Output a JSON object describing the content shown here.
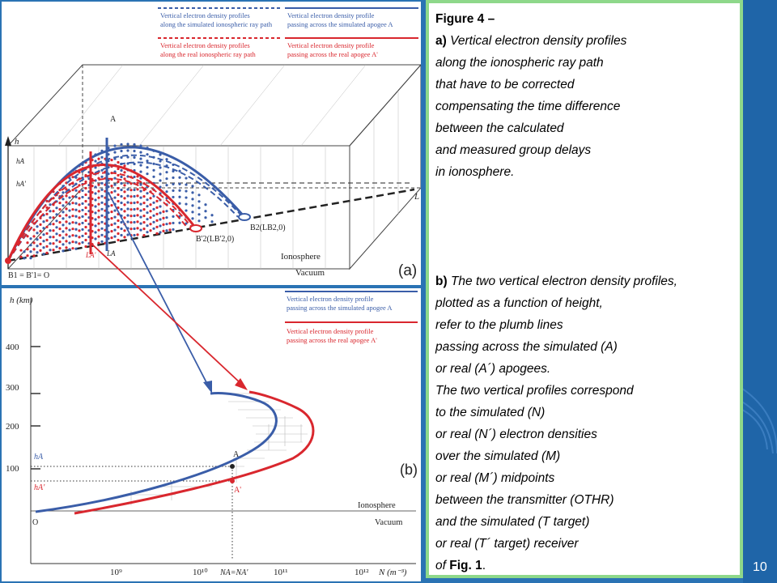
{
  "panel_a": {
    "legend": {
      "blue_dotted_l1": "Vertical electron density profiles",
      "blue_dotted_l2": "along the simulated ionospheric ray path",
      "blue_solid_l1": "Vertical electron density profile",
      "blue_solid_l2": "passing across the simulated apogee A",
      "red_dotted_l1": "Vertical electron density profiles",
      "red_dotted_l2": "along the real ionospheric ray path",
      "red_solid_l1": "Vertical electron density profile",
      "red_solid_l2": "passing across the real apogee A'"
    },
    "labels": {
      "h": "h",
      "hA": "hA",
      "hAp": "hA'",
      "A": "A",
      "L": "L",
      "LA": "LA",
      "LAp": "LA'",
      "B2": "B2(LB2,0)",
      "B2p": "B'2(LB'2,0)",
      "origin": "B1 = B'1= O",
      "ionosphere": "Ionosphere",
      "vacuum": "Vacuum",
      "tag": "(a)"
    }
  },
  "panel_b": {
    "legend": {
      "blue_l1": "Vertical electron density profile",
      "blue_l2": "passing across the simulated apogee A",
      "red_l1": "Vertical electron density profile",
      "red_l2": "passing across the real apogee A'"
    },
    "axis": {
      "y_title": "h (km)",
      "y_ticks": [
        "400",
        "300",
        "200",
        "100"
      ],
      "x_title": "N (m⁻³)",
      "x_ticks": [
        "10⁹",
        "10¹⁰",
        "10¹¹",
        "10¹²"
      ],
      "x_eq": "NA=NA'"
    },
    "labels": {
      "hA": "hA",
      "hAp": "hA'",
      "A": "A",
      "Ap": "A'",
      "O": "O",
      "ionosphere": "Ionosphere",
      "vacuum": "Vacuum",
      "tag": "(b)"
    }
  },
  "caption": {
    "title": "Figure 4 –",
    "a_prefix": "a)",
    "a_line1": "Vertical electron density profiles",
    "a_lines": [
      "along the ionospheric ray path",
      "that have to be corrected",
      "compensating the time difference",
      "between the calculated",
      "and measured group delays",
      "in ionosphere."
    ],
    "b_prefix": "b)",
    "b_line1": "The two vertical electron density profiles,",
    "b_lines": [
      "plotted as a function of height,",
      "refer to the plumb lines",
      "passing across the simulated (A)",
      "or real (A´) apogees.",
      "The two vertical profiles correspond",
      "to the simulated (N)",
      "or real (N´) electron densities",
      "over the simulated (M)",
      "or real (M´) midpoints",
      "between the transmitter (OTHR)",
      "and the simulated (T target)",
      "or real (T´ target) receiver"
    ],
    "last_prefix": "of",
    "last_bold": "Fig. 1",
    "last_suffix": "."
  },
  "page_number": "10",
  "colors": {
    "blue": "#3a5da8",
    "red": "#d9272e",
    "background": "#2a73b4",
    "frame": "#8ed88a"
  }
}
